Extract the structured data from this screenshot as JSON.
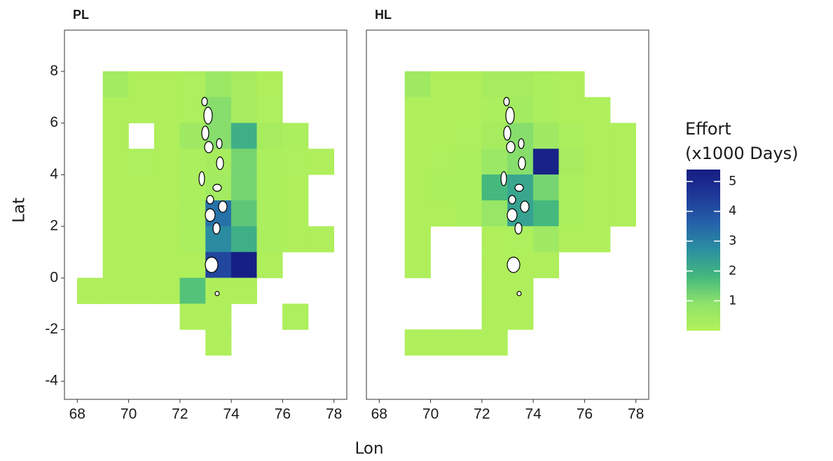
{
  "chart_data": {
    "type": "heatmap",
    "xlabel": "Lon",
    "ylabel": "Lat",
    "xlim": [
      67.5,
      78.5
    ],
    "ylim": [
      -4.7,
      9.6
    ],
    "xticks": [
      68,
      70,
      72,
      74,
      76,
      78
    ],
    "yticks": [
      -4,
      -2,
      0,
      2,
      4,
      6,
      8
    ],
    "colorbar": {
      "title": [
        "Effort",
        "(x1000 Days)"
      ],
      "lim": [
        0,
        5.4
      ],
      "ticks": [
        1,
        2,
        3,
        4,
        5
      ],
      "colors": [
        "#b3f15a",
        "#8fe36a",
        "#45b87e",
        "#2b90a0",
        "#2462aa",
        "#1f3a98",
        "#151c82"
      ]
    },
    "facets": [
      {
        "title": "PL",
        "cells": [
          [
            69,
            7,
            0.4
          ],
          [
            70,
            7,
            0.1
          ],
          [
            71,
            7,
            0.1
          ],
          [
            72,
            7,
            0.15
          ],
          [
            73,
            7,
            0.6
          ],
          [
            74,
            7,
            0.3
          ],
          [
            75,
            7,
            0.1
          ],
          [
            69,
            6,
            0.1
          ],
          [
            70,
            6,
            0.1
          ],
          [
            71,
            6,
            0.1
          ],
          [
            72,
            6,
            0.15
          ],
          [
            73,
            6,
            1.0
          ],
          [
            74,
            6,
            0.3
          ],
          [
            75,
            6,
            0.15
          ],
          [
            69,
            5,
            0.1
          ],
          [
            71,
            5,
            0.1
          ],
          [
            72,
            5,
            0.5
          ],
          [
            73,
            5,
            1.0
          ],
          [
            74,
            5,
            2.0
          ],
          [
            75,
            5,
            0.3
          ],
          [
            76,
            5,
            0.2
          ],
          [
            69,
            4,
            0.1
          ],
          [
            70,
            4,
            0.15
          ],
          [
            71,
            4,
            0.1
          ],
          [
            72,
            4,
            0.2
          ],
          [
            73,
            4,
            0.3
          ],
          [
            74,
            4,
            1.2
          ],
          [
            75,
            4,
            0.2
          ],
          [
            76,
            4,
            0.15
          ],
          [
            77,
            4,
            0.1
          ],
          [
            69,
            3,
            0.1
          ],
          [
            70,
            3,
            0.1
          ],
          [
            71,
            3,
            0.1
          ],
          [
            72,
            3,
            0.2
          ],
          [
            73,
            3,
            0.4
          ],
          [
            74,
            3,
            1.2
          ],
          [
            75,
            3,
            0.2
          ],
          [
            76,
            3,
            0.1
          ],
          [
            69,
            2,
            0.1
          ],
          [
            70,
            2,
            0.1
          ],
          [
            71,
            2,
            0.1
          ],
          [
            72,
            2,
            0.2
          ],
          [
            73,
            2,
            3.3
          ],
          [
            74,
            2,
            1.5
          ],
          [
            75,
            2,
            0.2
          ],
          [
            76,
            2,
            0.1
          ],
          [
            69,
            1,
            0.1
          ],
          [
            70,
            1,
            0.1
          ],
          [
            71,
            1,
            0.1
          ],
          [
            72,
            1,
            0.2
          ],
          [
            73,
            1,
            2.8
          ],
          [
            74,
            1,
            2.0
          ],
          [
            75,
            1,
            0.2
          ],
          [
            76,
            1,
            0.1
          ],
          [
            77,
            1,
            0.1
          ],
          [
            69,
            0,
            0.1
          ],
          [
            70,
            0,
            0.1
          ],
          [
            71,
            0,
            0.1
          ],
          [
            72,
            0,
            0.1
          ],
          [
            73,
            0,
            4.2
          ],
          [
            74,
            0,
            5.3
          ],
          [
            75,
            0,
            0.1
          ],
          [
            68,
            -1,
            0.1
          ],
          [
            69,
            -1,
            0.1
          ],
          [
            70,
            -1,
            0.1
          ],
          [
            71,
            -1,
            0.1
          ],
          [
            72,
            -1,
            1.6
          ],
          [
            73,
            -1,
            0.1
          ],
          [
            74,
            -1,
            0.1
          ],
          [
            72,
            -2,
            0.1
          ],
          [
            73,
            -2,
            0.1
          ],
          [
            76,
            -2,
            0.15
          ],
          [
            73,
            -3,
            0.1
          ]
        ]
      },
      {
        "title": "HL",
        "cells": [
          [
            69,
            7,
            0.5
          ],
          [
            70,
            7,
            0.1
          ],
          [
            71,
            7,
            0.1
          ],
          [
            72,
            7,
            0.3
          ],
          [
            73,
            7,
            0.3
          ],
          [
            74,
            7,
            0.2
          ],
          [
            75,
            7,
            0.1
          ],
          [
            69,
            6,
            0.1
          ],
          [
            70,
            6,
            0.1
          ],
          [
            71,
            6,
            0.1
          ],
          [
            72,
            6,
            0.2
          ],
          [
            73,
            6,
            0.4
          ],
          [
            74,
            6,
            0.2
          ],
          [
            75,
            6,
            0.1
          ],
          [
            76,
            6,
            0.1
          ],
          [
            69,
            5,
            0.1
          ],
          [
            70,
            5,
            0.1
          ],
          [
            71,
            5,
            0.15
          ],
          [
            72,
            5,
            0.3
          ],
          [
            73,
            5,
            1.0
          ],
          [
            74,
            5,
            0.5
          ],
          [
            75,
            5,
            0.2
          ],
          [
            76,
            5,
            0.1
          ],
          [
            77,
            5,
            0.1
          ],
          [
            69,
            4,
            0.1
          ],
          [
            70,
            4,
            0.15
          ],
          [
            71,
            4,
            0.2
          ],
          [
            72,
            4,
            0.6
          ],
          [
            73,
            4,
            1.0
          ],
          [
            74,
            4,
            5.2
          ],
          [
            75,
            4,
            0.3
          ],
          [
            76,
            4,
            0.1
          ],
          [
            77,
            4,
            0.1
          ],
          [
            69,
            3,
            0.1
          ],
          [
            70,
            3,
            0.2
          ],
          [
            71,
            3,
            0.2
          ],
          [
            72,
            3,
            1.8
          ],
          [
            73,
            3,
            2.2
          ],
          [
            74,
            3,
            1.2
          ],
          [
            75,
            3,
            0.2
          ],
          [
            76,
            3,
            0.1
          ],
          [
            77,
            3,
            0.1
          ],
          [
            69,
            2,
            0.1
          ],
          [
            70,
            2,
            0.1
          ],
          [
            71,
            2,
            0.2
          ],
          [
            72,
            2,
            0.7
          ],
          [
            73,
            2,
            2.3
          ],
          [
            74,
            2,
            1.8
          ],
          [
            75,
            2,
            0.2
          ],
          [
            76,
            2,
            0.1
          ],
          [
            77,
            2,
            0.1
          ],
          [
            69,
            1,
            0.1
          ],
          [
            72,
            1,
            0.1
          ],
          [
            73,
            1,
            0.15
          ],
          [
            74,
            1,
            0.5
          ],
          [
            75,
            1,
            0.1
          ],
          [
            76,
            1,
            0.1
          ],
          [
            69,
            0,
            0.1
          ],
          [
            72,
            0,
            0.1
          ],
          [
            73,
            0,
            0.1
          ],
          [
            74,
            0,
            0.1
          ],
          [
            72,
            -1,
            0.1
          ],
          [
            73,
            -1,
            0.1
          ],
          [
            72,
            -2,
            0.1
          ],
          [
            73,
            -2,
            0.1
          ],
          [
            69,
            -3,
            0.1
          ],
          [
            70,
            -3,
            0.1
          ],
          [
            71,
            -3,
            0.1
          ],
          [
            72,
            -3,
            0.1
          ]
        ]
      }
    ]
  }
}
